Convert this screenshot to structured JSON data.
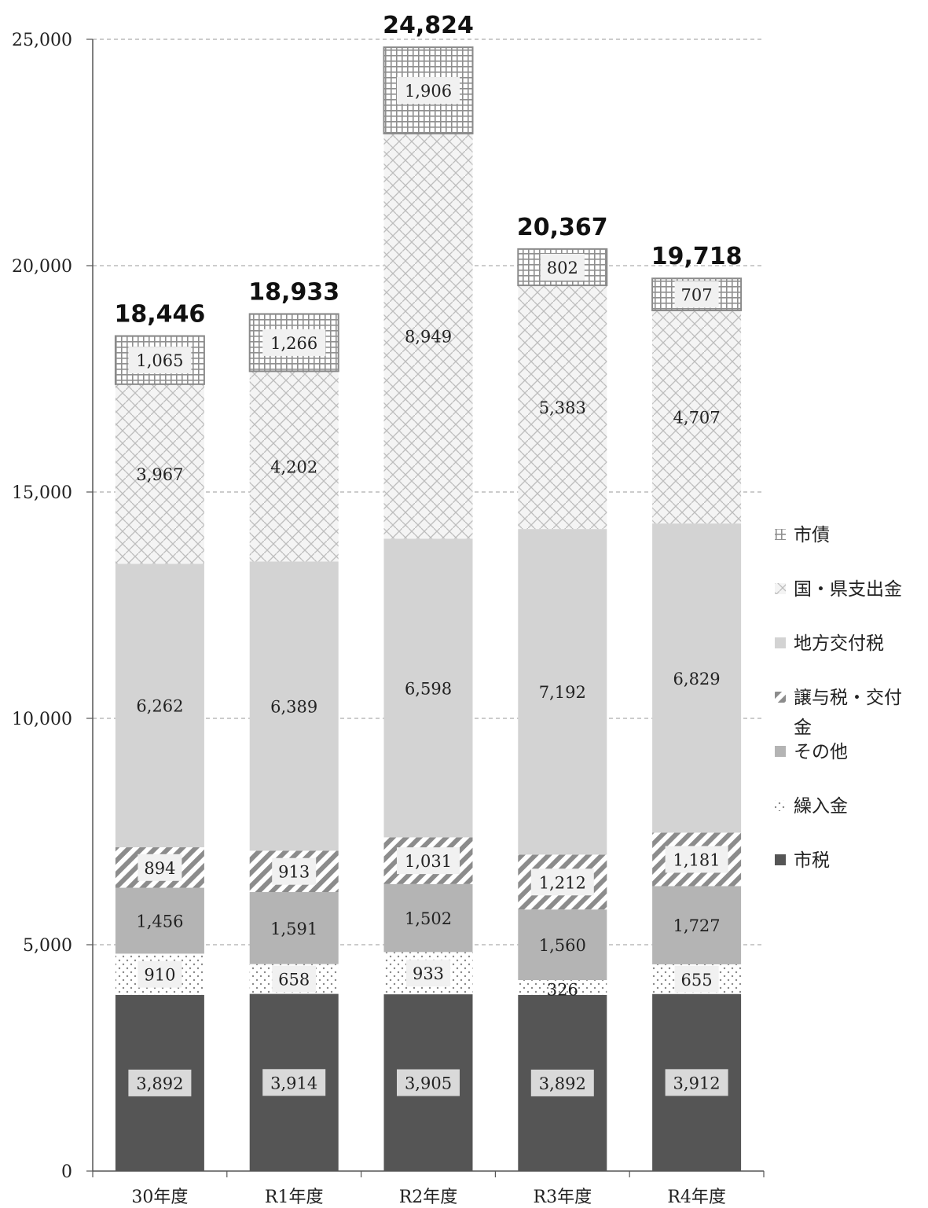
{
  "chart_data": {
    "type": "bar",
    "stacked": true,
    "categories": [
      "30年度",
      "R1年度",
      "R2年度",
      "R3年度",
      "R4年度"
    ],
    "ylim": [
      0,
      25000
    ],
    "yticks": [
      0,
      5000,
      10000,
      15000,
      20000,
      25000
    ],
    "ytick_labels": [
      "0",
      "5,000",
      "10,000",
      "15,000",
      "20,000",
      "25,000"
    ],
    "grid": true,
    "legend_position": "right",
    "series": [
      {
        "name": "市税",
        "values": [
          3892,
          3914,
          3905,
          3892,
          3912
        ],
        "labels": [
          "3,892",
          "3,914",
          "3,905",
          "3,892",
          "3,912"
        ],
        "color": "#555555",
        "pattern": "solid"
      },
      {
        "name": "繰入金",
        "values": [
          910,
          658,
          933,
          326,
          655
        ],
        "labels": [
          "910",
          "658",
          "933",
          "326",
          "655"
        ],
        "color": "#bbbbbb",
        "pattern": "dots"
      },
      {
        "name": "その他",
        "values": [
          1456,
          1591,
          1502,
          1560,
          1727
        ],
        "labels": [
          "1,456",
          "1,591",
          "1,502",
          "1,560",
          "1,727"
        ],
        "color": "#b4b4b4",
        "pattern": "solid"
      },
      {
        "name": "譲与税・交付金",
        "values": [
          894,
          913,
          1031,
          1212,
          1181
        ],
        "labels": [
          "894",
          "913",
          "1,031",
          "1,212",
          "1,181"
        ],
        "color": "#999999",
        "pattern": "diagonal"
      },
      {
        "name": "地方交付税",
        "values": [
          6262,
          6389,
          6598,
          7192,
          6829
        ],
        "labels": [
          "6,262",
          "6,389",
          "6,598",
          "7,192",
          "6,829"
        ],
        "color": "#d3d3d3",
        "pattern": "solid"
      },
      {
        "name": "国・県支出金",
        "values": [
          3967,
          4202,
          8949,
          5383,
          4707
        ],
        "labels": [
          "3,967",
          "4,202",
          "8,949",
          "5,383",
          "4,707"
        ],
        "color": "#c8c8c8",
        "pattern": "weave"
      },
      {
        "name": "市債",
        "values": [
          1065,
          1266,
          1906,
          802,
          707
        ],
        "labels": [
          "1,065",
          "1,266",
          "1,906",
          "802",
          "707"
        ],
        "color": "#9a9a9a",
        "pattern": "grid"
      }
    ],
    "totals": [
      18446,
      18933,
      24824,
      20367,
      19718
    ],
    "total_labels": [
      "18,446",
      "18,933",
      "24,824",
      "20,367",
      "19,718"
    ],
    "legend": [
      {
        "label": "市債",
        "icon": "grid-swatch-icon",
        "series": 6
      },
      {
        "label": "国・県支出金",
        "icon": "weave-swatch-icon",
        "series": 5
      },
      {
        "label": "地方交付税",
        "icon": "light-swatch-icon",
        "series": 4
      },
      {
        "label": "譲与税・交付金",
        "icon": "diagonal-swatch-icon",
        "series": 3
      },
      {
        "label": "その他",
        "icon": "mid-swatch-icon",
        "series": 2
      },
      {
        "label": "繰入金",
        "icon": "dots-swatch-icon",
        "series": 1
      },
      {
        "label": "市税",
        "icon": "dark-swatch-icon",
        "series": 0
      }
    ]
  }
}
